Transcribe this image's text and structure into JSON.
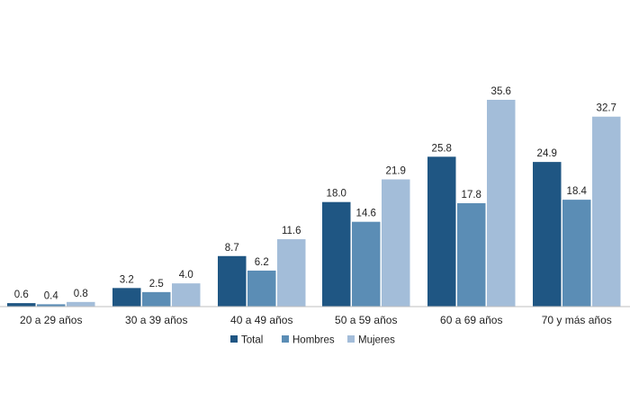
{
  "chart_data": {
    "type": "bar",
    "categories": [
      "20 a 29 años",
      "30 a 39 años",
      "40 a 49 años",
      "50 a 59 años",
      "60 a 69 años",
      "70 y más años"
    ],
    "series": [
      {
        "name": "Total",
        "color": "#1f5683",
        "values": [
          0.6,
          3.2,
          8.7,
          18.0,
          25.8,
          24.9
        ],
        "labels": [
          "0.6",
          "3.2",
          "8.7",
          "18.0",
          "25.8",
          "24.9"
        ]
      },
      {
        "name": "Hombres",
        "color": "#5b8db5",
        "values": [
          0.4,
          2.5,
          6.2,
          14.6,
          17.8,
          18.4
        ],
        "labels": [
          "0.4",
          "2.5",
          "6.2",
          "14.6",
          "17.8",
          "18.4"
        ]
      },
      {
        "name": "Mujeres",
        "color": "#a3bdd9",
        "values": [
          0.8,
          4.0,
          11.6,
          21.9,
          35.6,
          32.7
        ],
        "labels": [
          "0.8",
          "4.0",
          "11.6",
          "21.9",
          "35.6",
          "32.7"
        ]
      }
    ],
    "title": "",
    "xlabel": "",
    "ylabel": "",
    "ylim": [
      0,
      35.6
    ],
    "grid": false,
    "legend": "bottom-center"
  }
}
